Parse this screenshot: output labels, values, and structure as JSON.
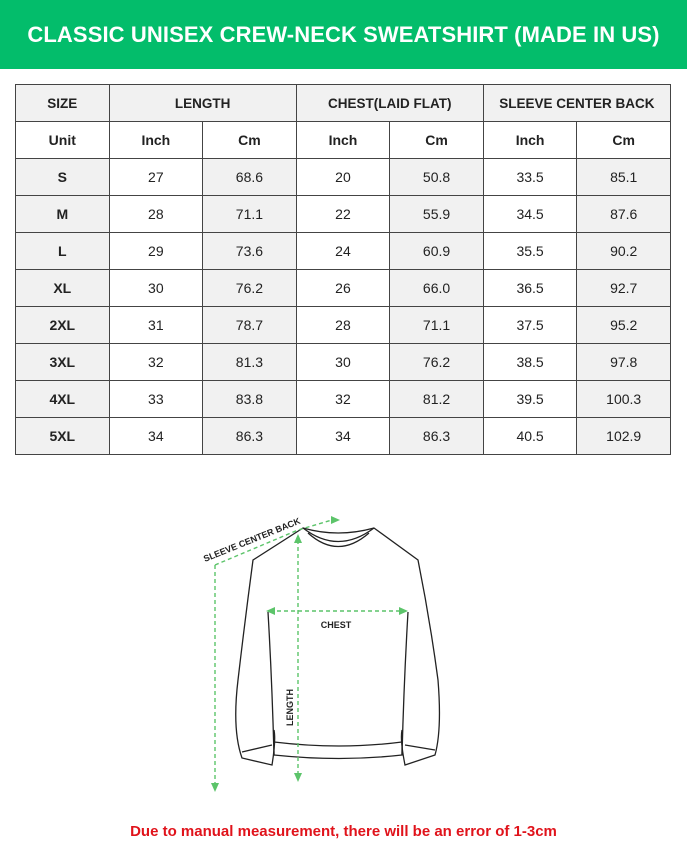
{
  "title": "CLASSIC UNISEX CREW-NECK SWEATSHIRT (MADE IN US)",
  "table": {
    "headers": [
      "SIZE",
      "LENGTH",
      "CHEST(LAID FLAT)",
      "SLEEVE CENTER BACK"
    ],
    "units": [
      "Unit",
      "Inch",
      "Cm",
      "Inch",
      "Cm",
      "Inch",
      "Cm"
    ],
    "rows": [
      [
        "S",
        "27",
        "68.6",
        "20",
        "50.8",
        "33.5",
        "85.1"
      ],
      [
        "M",
        "28",
        "71.1",
        "22",
        "55.9",
        "34.5",
        "87.6"
      ],
      [
        "L",
        "29",
        "73.6",
        "24",
        "60.9",
        "35.5",
        "90.2"
      ],
      [
        "XL",
        "30",
        "76.2",
        "26",
        "66.0",
        "36.5",
        "92.7"
      ],
      [
        "2XL",
        "31",
        "78.7",
        "28",
        "71.1",
        "37.5",
        "95.2"
      ],
      [
        "3XL",
        "32",
        "81.3",
        "30",
        "76.2",
        "38.5",
        "97.8"
      ],
      [
        "4XL",
        "33",
        "83.8",
        "32",
        "81.2",
        "39.5",
        "100.3"
      ],
      [
        "5XL",
        "34",
        "86.3",
        "34",
        "86.3",
        "40.5",
        "102.9"
      ]
    ]
  },
  "diagram": {
    "sleeve_label": "SLEEVE CENTER BACK",
    "chest_label": "CHEST",
    "length_label": "LENGTH",
    "arrow_color": "#5cc46a"
  },
  "note": "Due to manual measurement, there will be an error of 1-3cm",
  "colors": {
    "banner": "#03bd6b",
    "note": "#e0131b"
  }
}
